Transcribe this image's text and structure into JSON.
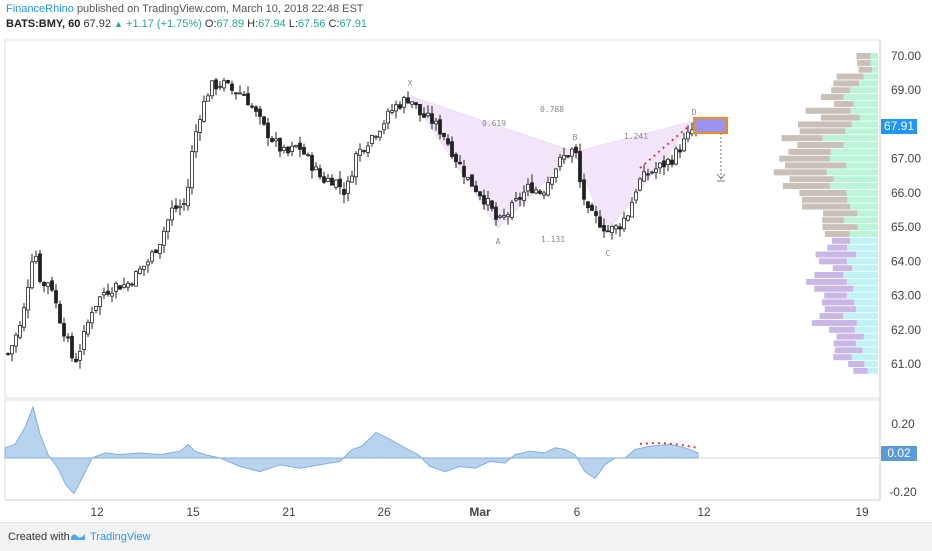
{
  "header": {
    "author": "FinanceRhino",
    "published": "published on TradingView.com, March 10, 2018 22:48 EST",
    "symbol": "BATS:BMY, 60",
    "last": "67.92",
    "change": "+1.17 (+1.75%)",
    "open_label": "O:",
    "open": "67.89",
    "high_label": "H:",
    "high": "67.94",
    "low_label": "L:",
    "low": "67.56",
    "close_label": "C:",
    "close": "67.91"
  },
  "footer": {
    "created_with": "Created with",
    "brand": "TradingView"
  },
  "colors": {
    "pattern_fill": "#f3e6fb",
    "volume_up": "#b9f5d6",
    "volume_down": "#c9c0b8",
    "volume_purple": "#c9b8e6",
    "volume_cyan": "#bff3f6",
    "oscillator_fill": "#b9d3ee",
    "oscillator_line": "#7fb0e0",
    "price_tag": "#2196f3",
    "osc_tag": "#5b9bd5",
    "target_box": "#9a93f0",
    "target_border": "#f08c18",
    "dotted_red": "#e53935"
  },
  "chart_data": [
    {
      "type": "candlestick",
      "ylim": [
        60.2,
        70.4
      ],
      "y_ticks": [
        70.0,
        69.0,
        68.0,
        67.0,
        66.0,
        65.0,
        64.0,
        63.0,
        62.0,
        61.0
      ],
      "y_tick_labels": [
        "70.00",
        "69.00",
        "67.00",
        "66.00",
        "65.00",
        "64.00",
        "63.00",
        "62.00",
        "61.00"
      ],
      "last_price_label": "67.91",
      "x_tick_labels": [
        "12",
        "15",
        "21",
        "26",
        "Mar",
        "6",
        "12",
        "19"
      ],
      "pattern_labels": {
        "X": "X",
        "A": "A",
        "B": "B",
        "C": "C",
        "D": "D",
        "xb_ratio": "0.619",
        "xd_ratio": "0.788",
        "bd_ratio": "1.241",
        "ac_ratio": "1.131"
      },
      "pattern_points": {
        "X": 68.85,
        "A": 64.85,
        "B": 67.35,
        "C": 64.65,
        "D": 68.15
      },
      "target_zone": [
        67.8,
        68.2
      ],
      "projection_target": 66.3
    },
    {
      "type": "area",
      "name": "oscillator",
      "ylim": [
        -0.24,
        0.34
      ],
      "y_ticks": [
        0.2,
        -0.2
      ],
      "y_tick_labels": [
        "0.20",
        "-0.20"
      ],
      "last_value_label": "0.02"
    }
  ]
}
